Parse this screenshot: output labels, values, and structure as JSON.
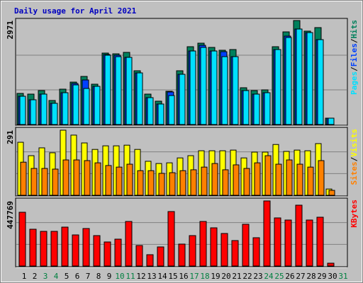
{
  "chart_data": [
    {
      "type": "bar",
      "title": "Daily usage for April 2021",
      "title_color": "#0000c0",
      "legend_separator": "/",
      "series": [
        {
          "name": "Hits",
          "color": "#00805c",
          "values": [
            889,
            869,
            970,
            687,
            1010,
            1212,
            1374,
            1152,
            2041,
            2020,
            2061,
            1536,
            869,
            667,
            950,
            1536,
            2223,
            2324,
            2203,
            2122,
            2142,
            1051,
            970,
            990,
            2223,
            2647,
            2971,
            2668,
            2769,
            182,
            0
          ]
        },
        {
          "name": "Files",
          "color": "#0040ff",
          "values": [
            808,
            707,
            869,
            606,
            909,
            1172,
            1273,
            1091,
            2000,
            1980,
            1919,
            1475,
            768,
            586,
            930,
            1435,
            2101,
            2263,
            2101,
            2081,
            1939,
            970,
            869,
            909,
            2142,
            2526,
            2728,
            2627,
            2425,
            182,
            0
          ]
        },
        {
          "name": "Pages",
          "color": "#00e0ff",
          "values": [
            808,
            707,
            869,
            606,
            909,
            1132,
            1030,
            1091,
            1980,
            1939,
            1919,
            1475,
            768,
            586,
            828,
            1435,
            2101,
            2203,
            2101,
            1939,
            1939,
            970,
            869,
            909,
            2142,
            2486,
            2728,
            2627,
            2425,
            182,
            0
          ]
        }
      ],
      "ylim": [
        0,
        2971
      ],
      "yticks": [
        2971
      ]
    },
    {
      "type": "bar",
      "legend_separator": "/",
      "series": [
        {
          "name": "Visits",
          "color": "#ffff00",
          "values": [
            237,
            177,
            212,
            190,
            291,
            269,
            234,
            205,
            221,
            221,
            224,
            205,
            152,
            142,
            145,
            167,
            177,
            199,
            199,
            199,
            202,
            167,
            193,
            193,
            227,
            196,
            202,
            199,
            231,
            28,
            0
          ]
        },
        {
          "name": "Sites",
          "color": "#ff8000",
          "values": [
            148,
            120,
            120,
            117,
            158,
            158,
            155,
            145,
            133,
            126,
            139,
            110,
            110,
            98,
            101,
            110,
            114,
            126,
            142,
            114,
            136,
            120,
            145,
            177,
            139,
            158,
            139,
            126,
            155,
            22,
            0
          ]
        }
      ],
      "ylim": [
        0,
        291
      ],
      "yticks": [
        291
      ]
    },
    {
      "type": "bar",
      "categories": [
        "1",
        "2",
        "3",
        "4",
        "5",
        "6",
        "7",
        "8",
        "9",
        "10",
        "11",
        "12",
        "13",
        "14",
        "15",
        "16",
        "17",
        "18",
        "19",
        "20",
        "21",
        "22",
        "23",
        "24",
        "25",
        "26",
        "27",
        "28",
        "29",
        "30",
        "31"
      ],
      "category_colors": [
        "#000000",
        "#000000",
        "#008040",
        "#008040",
        "#000000",
        "#000000",
        "#000000",
        "#000000",
        "#000000",
        "#008040",
        "#008040",
        "#000000",
        "#000000",
        "#000000",
        "#000000",
        "#000000",
        "#008040",
        "#008040",
        "#000000",
        "#000000",
        "#000000",
        "#000000",
        "#000000",
        "#008040",
        "#008040",
        "#000000",
        "#000000",
        "#000000",
        "#000000",
        "#000000",
        "#008040"
      ],
      "series": [
        {
          "name": "KBytes",
          "color": "#ff0000",
          "values": [
            369900,
            253100,
            238500,
            238500,
            267700,
            214100,
            258000,
            209300,
            165500,
            184900,
            306600,
            141100,
            77900,
            131400,
            374800,
            150900,
            209300,
            306600,
            262800,
            223900,
            175200,
            287200,
            194700,
            447769,
            331000,
            316400,
            418600,
            316400,
            335800,
            19500,
            0
          ]
        }
      ],
      "ylim": [
        0,
        447769
      ],
      "yticks": [
        447769
      ]
    }
  ]
}
